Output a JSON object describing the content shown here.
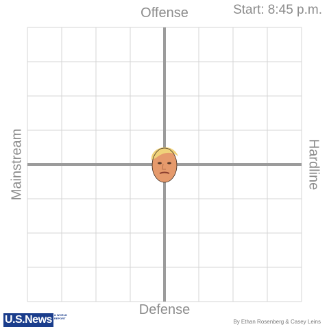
{
  "chart_data": {
    "type": "scatter",
    "axes": {
      "top": "Offense",
      "bottom": "Defense",
      "left": "Mainstream",
      "right": "Hardline"
    },
    "xlim": [
      -4,
      4
    ],
    "ylim": [
      -4,
      4
    ],
    "grid": true,
    "points": [
      {
        "x": 0,
        "y": 0,
        "marker": "candidate-face-portrait"
      }
    ]
  },
  "start_time": "Start: 8:45 p.m.",
  "logo": {
    "text": "U.S.News",
    "subtext": "& WORLD REPORT"
  },
  "byline": "By Ethan Rosenberg & Casey Leins",
  "colors": {
    "grid": "#d4d4d4",
    "axis": "#9b9b9b",
    "label": "#8c8c8c",
    "logo": "#1a3d8c"
  }
}
